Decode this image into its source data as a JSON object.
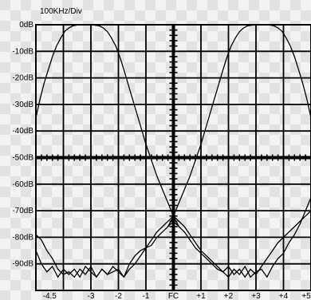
{
  "chart_data": {
    "type": "line",
    "title": "",
    "div_label": "100KHz/Div",
    "xlabel": "",
    "ylabel": "",
    "xlim": [
      -5,
      5
    ],
    "ylim": [
      -100,
      0
    ],
    "y_ticks": [
      {
        "v": 0,
        "label": "0dB"
      },
      {
        "v": -10,
        "label": "-10dB"
      },
      {
        "v": -20,
        "label": "-20dB"
      },
      {
        "v": -30,
        "label": "-30dB"
      },
      {
        "v": -40,
        "label": "-40dB"
      },
      {
        "v": -50,
        "label": "-50dB"
      },
      {
        "v": -60,
        "label": "-60dB"
      },
      {
        "v": -70,
        "label": "-70dB"
      },
      {
        "v": -80,
        "label": "-80dB"
      },
      {
        "v": -90,
        "label": "-90dB"
      }
    ],
    "x_ticks": [
      {
        "v": -4.5,
        "label": "-4.5"
      },
      {
        "v": -3,
        "label": "-3"
      },
      {
        "v": -2,
        "label": "-2"
      },
      {
        "v": -1,
        "label": "-1"
      },
      {
        "v": 0,
        "label": "FC"
      },
      {
        "v": 1,
        "label": "+1"
      },
      {
        "v": 2,
        "label": "+2"
      },
      {
        "v": 3,
        "label": "+3"
      },
      {
        "v": 4,
        "label": "+4"
      },
      {
        "v": 5,
        "label": "+5"
      }
    ],
    "grid": true,
    "series": [
      {
        "x": [
          -5,
          -4.8,
          -4.6,
          -4.4,
          -4.2,
          -4,
          -3.8,
          -3.6,
          -3.4,
          -3.2,
          -3,
          -2.8,
          -2.6,
          -2.4,
          -2.2,
          -2,
          -1.8,
          -1.6,
          -1.4,
          -1.2,
          -1,
          -0.8,
          -0.6,
          -0.4,
          -0.2,
          0,
          0.2,
          0.4,
          0.6,
          0.8,
          1,
          1.2,
          1.4,
          1.6,
          1.8,
          2,
          2.2,
          2.4,
          2.6,
          2.8,
          3,
          3.2,
          3.4,
          3.6,
          3.8,
          4,
          4.2,
          4.4,
          4.6,
          4.8,
          5
        ],
        "y": [
          -79,
          -81,
          -85,
          -88,
          -92,
          -94,
          -93,
          -95,
          -92,
          -94,
          -91,
          -95,
          -92,
          -94,
          -93,
          -92,
          -95,
          -90,
          -87,
          -85,
          -84,
          -83,
          -80,
          -78,
          -76,
          -74,
          -76,
          -78,
          -81,
          -84,
          -86,
          -88,
          -90,
          -92,
          -93,
          -95,
          -92,
          -94,
          -91,
          -95,
          -93,
          -92,
          -95,
          -91,
          -88,
          -86,
          -82,
          -79,
          -75,
          -70,
          -65
        ]
      },
      {
        "x": [
          -5,
          -4.8,
          -4.6,
          -4.4,
          -4.2,
          -4,
          -3.8,
          -3.6,
          -3.4,
          -3.2,
          -3,
          -2.8,
          -2.6,
          -2.4,
          -2.2,
          -2,
          -1.8,
          -1.6,
          -1.4,
          -1.2,
          -1,
          -0.8,
          -0.6,
          -0.4,
          -0.2,
          0,
          0.2,
          0.4,
          0.6,
          0.8,
          1,
          1.2,
          1.4,
          1.6,
          1.8,
          2,
          2.2,
          2.4,
          2.6,
          2.8,
          3,
          3.2,
          3.4,
          3.6,
          3.8,
          4,
          4.2,
          4.4,
          4.6,
          4.8,
          5
        ],
        "y": [
          -85,
          -90,
          -93,
          -91,
          -95,
          -92,
          -94,
          -92,
          -95,
          -91,
          -93,
          -95,
          -92,
          -94,
          -91,
          -93,
          -95,
          -92,
          -90,
          -87,
          -84,
          -81,
          -78,
          -76,
          -74,
          -72,
          -74,
          -76,
          -79,
          -82,
          -85,
          -87,
          -89,
          -91,
          -93,
          -91,
          -94,
          -92,
          -95,
          -92,
          -94,
          -91,
          -88,
          -85,
          -82,
          -80,
          -78,
          -76,
          -74,
          -72,
          -70
        ]
      },
      {
        "x": [
          -5,
          -4.85,
          -4.7,
          -4.55,
          -4.4,
          -4.25,
          -4.1,
          -3.95,
          -3.8,
          -3.65,
          -3.5,
          -3.3,
          -3.1,
          -2.9,
          -2.7,
          -2.55,
          -2.4,
          -2.25,
          -2.1,
          -1.95,
          -1.8,
          -1.6,
          -1.4,
          -1.2,
          -1,
          -0.8,
          -0.6,
          -0.4,
          -0.2,
          0,
          0.2
        ],
        "y": [
          -35,
          -28,
          -22,
          -17,
          -12,
          -8,
          -5,
          -2.5,
          -1.2,
          -0.4,
          -0.1,
          0,
          0,
          -0.1,
          -0.4,
          -1.2,
          -2.6,
          -5,
          -8,
          -12,
          -17,
          -24,
          -31,
          -38,
          -45,
          -51,
          -57,
          -62,
          -67,
          -72,
          -76
        ]
      },
      {
        "x": [
          -0.2,
          0,
          0.2,
          0.4,
          0.6,
          0.8,
          1,
          1.2,
          1.4,
          1.6,
          1.8,
          1.95,
          2.1,
          2.25,
          2.4,
          2.55,
          2.7,
          2.9,
          3.1,
          3.3,
          3.5,
          3.65,
          3.8,
          3.95,
          4.1,
          4.25,
          4.4,
          4.55,
          4.7,
          4.85,
          5
        ],
        "y": [
          -76,
          -72,
          -67,
          -62,
          -57,
          -51,
          -45,
          -38,
          -31,
          -24,
          -17,
          -12,
          -8,
          -5,
          -2.6,
          -1.2,
          -0.4,
          -0.1,
          0,
          0,
          -0.1,
          -0.4,
          -1.2,
          -2.5,
          -5,
          -8,
          -12,
          -17,
          -22,
          -28,
          -35
        ]
      }
    ]
  }
}
